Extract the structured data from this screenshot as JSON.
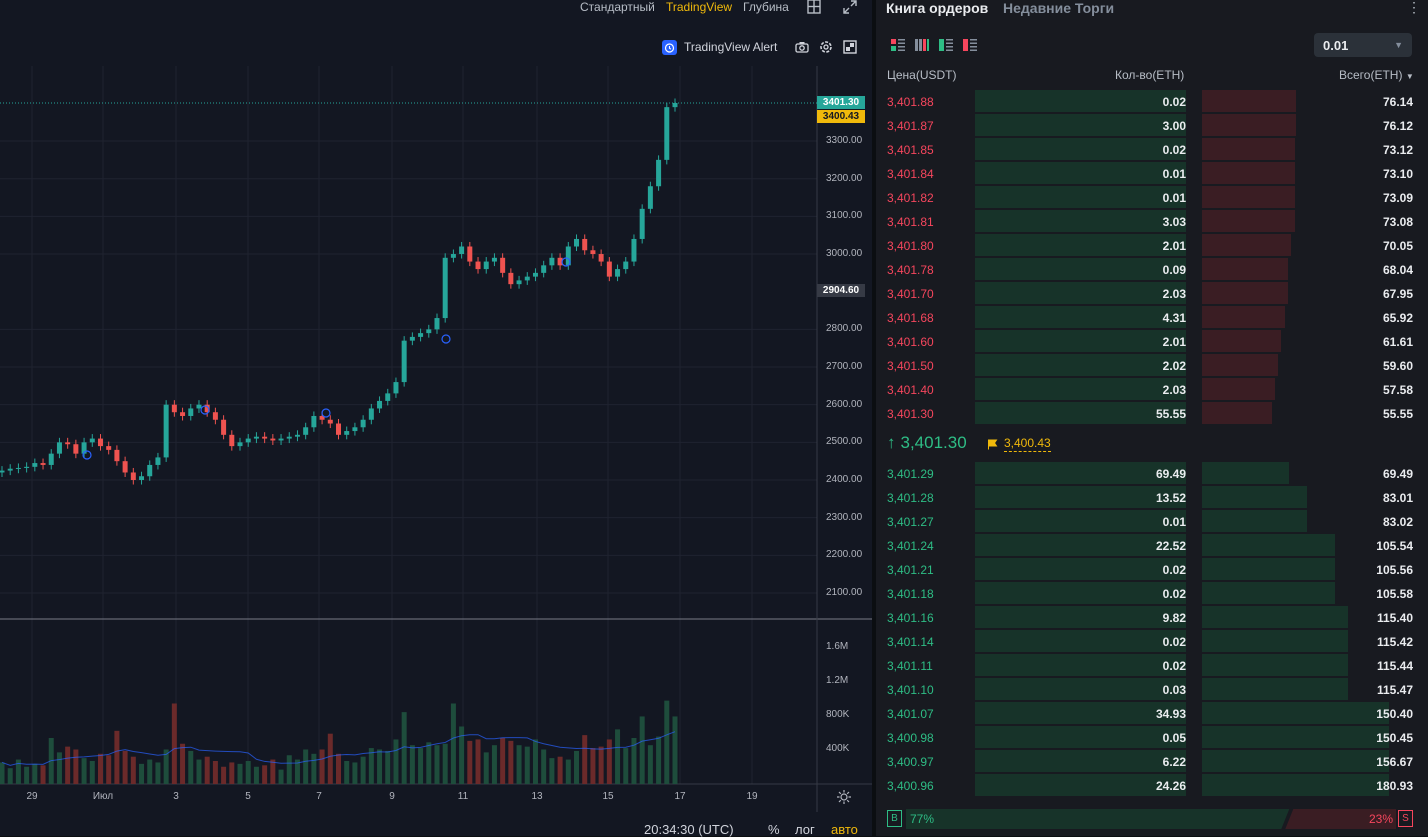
{
  "chart_toolbar": {
    "tabs": [
      "Стандартный",
      "TradingView",
      "Глубина"
    ],
    "active_tab": "TradingView",
    "alert_label": "TradingView Alert"
  },
  "price_axis": {
    "ticks": [
      "3300.00",
      "3200.00",
      "3100.00",
      "3000.00",
      "2800.00",
      "2700.00",
      "2600.00",
      "2500.00",
      "2400.00",
      "2300.00",
      "2200.00",
      "2100.00"
    ],
    "last_price_tag": "3401.30",
    "mark_price_tag": "3400.43",
    "crosshair_tag": "2904.60"
  },
  "volume_axis": {
    "ticks": [
      "1.6M",
      "1.2M",
      "800K",
      "400K"
    ]
  },
  "time_axis": {
    "ticks": [
      "29",
      "Июл",
      "3",
      "5",
      "7",
      "9",
      "11",
      "13",
      "15",
      "17",
      "19"
    ]
  },
  "bottom_bar": {
    "clock": "20:34:30 (UTC)",
    "percent": "%",
    "log": "лог",
    "auto": "авто"
  },
  "colors": {
    "up": "#26a69a",
    "down": "#ef5350",
    "accent": "#f0b90b",
    "bid": "#2ebd85",
    "ask": "#f6465d"
  },
  "chart_data": {
    "type": "candlestick",
    "series": [
      {
        "name": "",
        "open": [
          2420,
          2425,
          2430,
          2432,
          2435,
          2445,
          2440,
          2470,
          2500,
          2495,
          2470,
          2500,
          2510,
          2490,
          2480,
          2450,
          2420,
          2400,
          2410,
          2440,
          2460,
          2600,
          2580,
          2570,
          2590,
          2600,
          2580,
          2560,
          2520,
          2490,
          2500,
          2510,
          2515,
          2510,
          2505,
          2510,
          2515,
          2520,
          2540,
          2570,
          2560,
          2550,
          2520,
          2530,
          2540,
          2560,
          2590,
          2610,
          2630,
          2660,
          2770,
          2780,
          2790,
          2800,
          2830,
          2990,
          3000,
          3020,
          2980,
          2960,
          2980,
          2990,
          2950,
          2920,
          2930,
          2940,
          2950,
          2970,
          2990,
          2970,
          3020,
          3040,
          3010,
          3000,
          2980,
          2940,
          2960,
          2980,
          3040,
          3120,
          3180,
          3250,
          3390
        ],
        "close": [
          2425,
          2430,
          2432,
          2435,
          2445,
          2440,
          2470,
          2500,
          2495,
          2470,
          2500,
          2510,
          2490,
          2480,
          2450,
          2420,
          2400,
          2410,
          2440,
          2460,
          2600,
          2580,
          2570,
          2590,
          2600,
          2580,
          2560,
          2520,
          2490,
          2500,
          2510,
          2515,
          2510,
          2505,
          2510,
          2515,
          2520,
          2540,
          2570,
          2560,
          2550,
          2520,
          2530,
          2540,
          2560,
          2590,
          2610,
          2630,
          2660,
          2770,
          2780,
          2790,
          2800,
          2830,
          2990,
          3000,
          3020,
          2980,
          2960,
          2980,
          2990,
          2950,
          2920,
          2930,
          2940,
          2950,
          2970,
          2990,
          2970,
          3020,
          3040,
          3010,
          3000,
          2980,
          2940,
          2960,
          2980,
          3040,
          3120,
          3180,
          3250,
          3390,
          3401
        ]
      },
      {
        "name": "",
        "volume": [
          150,
          110,
          170,
          120,
          140,
          130,
          320,
          220,
          260,
          240,
          180,
          160,
          210,
          200,
          370,
          230,
          190,
          140,
          170,
          150,
          240,
          560,
          280,
          230,
          170,
          190,
          160,
          120,
          150,
          140,
          160,
          120,
          130,
          170,
          100,
          200,
          170,
          240,
          210,
          240,
          350,
          210,
          160,
          150,
          190,
          250,
          240,
          230,
          310,
          500,
          270,
          250,
          290,
          270,
          280,
          560,
          400,
          300,
          310,
          220,
          270,
          320,
          300,
          270,
          260,
          310,
          240,
          180,
          190,
          170,
          230,
          340,
          250,
          260,
          310,
          380,
          250,
          320,
          470,
          270,
          330,
          580,
          470
        ]
      }
    ],
    "ylim": [
      2050,
      3420
    ]
  },
  "orderbook": {
    "tabs": [
      "Книга ордеров",
      "Недавние Торги"
    ],
    "active_tab": "Книга ордеров",
    "precision": "0.01",
    "headers": {
      "price": "Цена(USDT)",
      "qty": "Кол-во(ETH)",
      "total": "Всего(ETH)"
    },
    "asks": [
      {
        "price": "3,401.88",
        "qty": "0.02",
        "total": "76.14",
        "depth": 0.505
      },
      {
        "price": "3,401.87",
        "qty": "3.00",
        "total": "76.12",
        "depth": 0.505
      },
      {
        "price": "3,401.85",
        "qty": "0.02",
        "total": "73.12",
        "depth": 0.495
      },
      {
        "price": "3,401.84",
        "qty": "0.01",
        "total": "73.10",
        "depth": 0.495
      },
      {
        "price": "3,401.82",
        "qty": "0.01",
        "total": "73.09",
        "depth": 0.495
      },
      {
        "price": "3,401.81",
        "qty": "3.03",
        "total": "73.08",
        "depth": 0.495
      },
      {
        "price": "3,401.80",
        "qty": "2.01",
        "total": "70.05",
        "depth": 0.475
      },
      {
        "price": "3,401.78",
        "qty": "0.09",
        "total": "68.04",
        "depth": 0.46
      },
      {
        "price": "3,401.70",
        "qty": "2.03",
        "total": "67.95",
        "depth": 0.46
      },
      {
        "price": "3,401.68",
        "qty": "4.31",
        "total": "65.92",
        "depth": 0.445
      },
      {
        "price": "3,401.60",
        "qty": "2.01",
        "total": "61.61",
        "depth": 0.42
      },
      {
        "price": "3,401.50",
        "qty": "2.02",
        "total": "59.60",
        "depth": 0.405
      },
      {
        "price": "3,401.40",
        "qty": "2.03",
        "total": "57.58",
        "depth": 0.39
      },
      {
        "price": "3,401.30",
        "qty": "55.55",
        "total": "55.55",
        "depth": 0.375
      }
    ],
    "last_price": "3,401.30",
    "mark_price": "3,400.43",
    "bids": [
      {
        "price": "3,401.29",
        "qty": "69.49",
        "total": "69.49",
        "depth": 0.465
      },
      {
        "price": "3,401.28",
        "qty": "13.52",
        "total": "83.01",
        "depth": 0.56
      },
      {
        "price": "3,401.27",
        "qty": "0.01",
        "total": "83.02",
        "depth": 0.56
      },
      {
        "price": "3,401.24",
        "qty": "22.52",
        "total": "105.54",
        "depth": 0.71
      },
      {
        "price": "3,401.21",
        "qty": "0.02",
        "total": "105.56",
        "depth": 0.71
      },
      {
        "price": "3,401.18",
        "qty": "0.02",
        "total": "105.58",
        "depth": 0.71
      },
      {
        "price": "3,401.16",
        "qty": "9.82",
        "total": "115.40",
        "depth": 0.78
      },
      {
        "price": "3,401.14",
        "qty": "0.02",
        "total": "115.42",
        "depth": 0.78
      },
      {
        "price": "3,401.11",
        "qty": "0.02",
        "total": "115.44",
        "depth": 0.78
      },
      {
        "price": "3,401.10",
        "qty": "0.03",
        "total": "115.47",
        "depth": 0.78
      },
      {
        "price": "3,401.07",
        "qty": "34.93",
        "total": "150.40",
        "depth": 1.0
      },
      {
        "price": "3,400.98",
        "qty": "0.05",
        "total": "150.45",
        "depth": 1.0
      },
      {
        "price": "3,400.97",
        "qty": "6.22",
        "total": "156.67",
        "depth": 1.0
      },
      {
        "price": "3,400.96",
        "qty": "24.26",
        "total": "180.93",
        "depth": 1.0
      }
    ],
    "ratio": {
      "buy_label": "B",
      "buy_pct": "77%",
      "sell_label": "S",
      "sell_pct": "23%",
      "buy_fraction": 0.77
    }
  }
}
